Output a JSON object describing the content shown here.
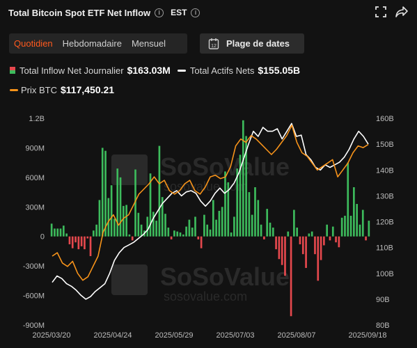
{
  "header": {
    "title": "Total Bitcoin Spot ETF Net Inflow",
    "timezone": "EST",
    "info_icon": "i"
  },
  "tabs": [
    {
      "label": "Quotidien",
      "active": true
    },
    {
      "label": "Hebdomadaire",
      "active": false
    },
    {
      "label": "Mensuel",
      "active": false
    }
  ],
  "date_range_label": "Plage de dates",
  "legend": {
    "inflow": {
      "label": "Total Inflow Net Journalier",
      "value": "$163.03M"
    },
    "assets": {
      "label": "Total Actifs Nets",
      "value": "$155.05B"
    },
    "price": {
      "label": "Prix BTC",
      "value": "$117,450.21"
    }
  },
  "colors": {
    "positive": "#3dbb5c",
    "negative": "#e5484d",
    "assets_line": "#ffffff",
    "price_line": "#f7931a",
    "accent": "#ff5a1f"
  },
  "watermark": "SoSoValue",
  "watermark_url": "sosovalue.com",
  "chart_data": {
    "type": "bar",
    "title": "Total Bitcoin Spot ETF Net Inflow",
    "x_ticks": [
      "2025/03/20",
      "2025/04/24",
      "2025/05/29",
      "2025/07/03",
      "2025/08/07",
      "2025/09/18"
    ],
    "y_left_ticks": [
      "1.2B",
      "900M",
      "600M",
      "300M",
      "0",
      "-300M",
      "-600M",
      "-900M"
    ],
    "y_left_range": [
      -900,
      1200
    ],
    "y_left_unit": "M USD",
    "y_right_ticks": [
      "160B",
      "150B",
      "140B",
      "130B",
      "120B",
      "110B",
      "100B",
      "90B",
      "80B"
    ],
    "y_right_range": [
      80,
      160
    ],
    "grid": false,
    "legend_position": "top-left",
    "series": [
      {
        "name": "Total Inflow Net Journalier",
        "type": "bar",
        "axis": "left",
        "values": [
          130,
          80,
          80,
          80,
          110,
          30,
          -80,
          -120,
          -60,
          -130,
          -100,
          -130,
          -20,
          -200,
          60,
          120,
          370,
          900,
          870,
          390,
          520,
          180,
          690,
          600,
          310,
          320,
          20,
          -40,
          680,
          240,
          120,
          60,
          200,
          640,
          250,
          160,
          920,
          400,
          230,
          90,
          -30,
          60,
          50,
          40,
          20,
          100,
          170,
          90,
          200,
          -30,
          -120,
          220,
          120,
          70,
          370,
          170,
          260,
          300,
          660,
          550,
          40,
          200,
          690,
          830,
          1180,
          1020,
          450,
          220,
          500,
          370,
          120,
          -30,
          280,
          140,
          90,
          -130,
          -230,
          -290,
          -400,
          50,
          -810,
          270,
          90,
          -80,
          -180,
          -320,
          30,
          50,
          -180,
          -450,
          -240,
          -90,
          120,
          -40,
          100,
          -60,
          -110,
          190,
          210,
          750,
          210,
          500,
          330,
          120,
          270,
          -40,
          160
        ],
        "note": "values in millions USD, daily"
      },
      {
        "name": "Total Actifs Nets",
        "type": "line",
        "axis": "right",
        "values": [
          96.5,
          99,
          98,
          96,
          95,
          93.5,
          91.5,
          90,
          91,
          93,
          94.5,
          96,
          100,
          105,
          108,
          110,
          111,
          112,
          113.5,
          115,
          117,
          121,
          124,
          127,
          129,
          131,
          132,
          130,
          131.5,
          132,
          131,
          128,
          126,
          128,
          131,
          133,
          131,
          132.5,
          135,
          139,
          144.5,
          150,
          155,
          153,
          156.5,
          155,
          155,
          156,
          152,
          155,
          158,
          153,
          153.5,
          146,
          144,
          141,
          140,
          142,
          141,
          142,
          143,
          145,
          148,
          152,
          155,
          153,
          150
        ],
        "note": "USD billions, sampled"
      },
      {
        "name": "Prix BTC",
        "type": "line",
        "axis": "right-proxy",
        "values": [
          85,
          86,
          83,
          82,
          83.5,
          80,
          78,
          79,
          82,
          85,
          92,
          95,
          97,
          94,
          96,
          97,
          100,
          103,
          104.5,
          106,
          108,
          106,
          107,
          104,
          103,
          104,
          106,
          107,
          104,
          103,
          105,
          108,
          108.5,
          107.5,
          108,
          111,
          117,
          119,
          118,
          120,
          119,
          117.5,
          116,
          114.5,
          116,
          118,
          120,
          123,
          118,
          115,
          114,
          112,
          110,
          111,
          112,
          113,
          108,
          110,
          112,
          115,
          117,
          116.5,
          117.4
        ],
        "note": "USD thousands, sampled"
      }
    ]
  }
}
